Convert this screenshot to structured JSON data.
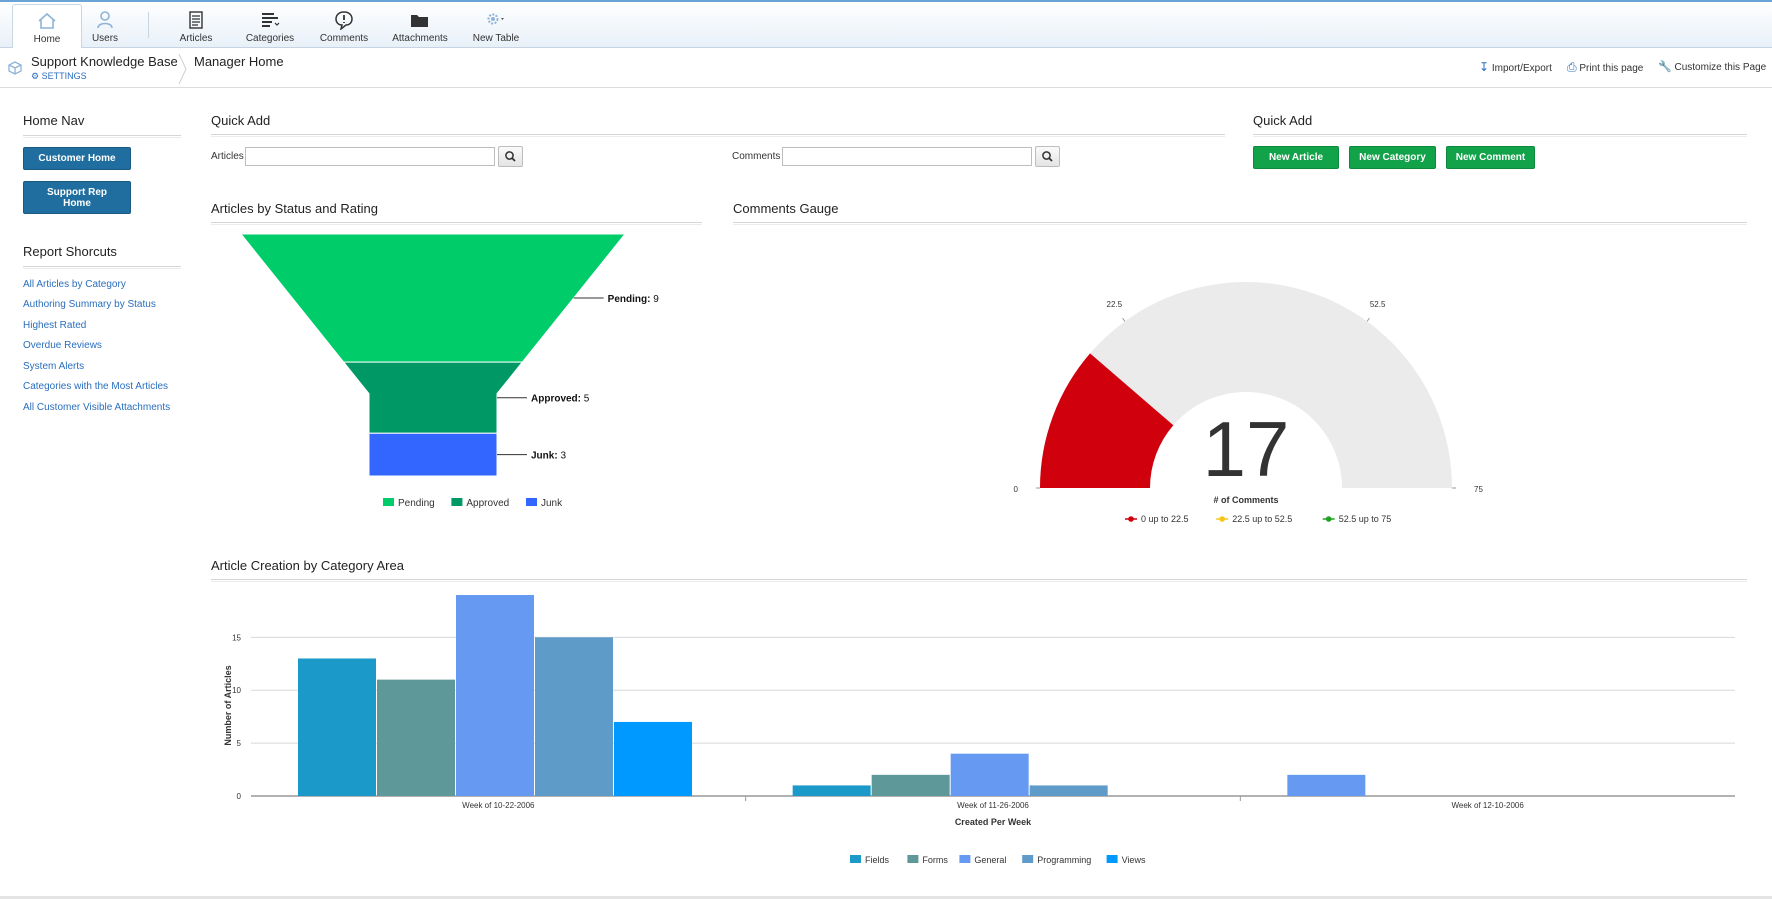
{
  "toolbar": {
    "items": [
      {
        "label": "Home",
        "icon": "home-icon"
      },
      {
        "label": "Users",
        "icon": "user-icon"
      },
      {
        "label": "Articles",
        "icon": "document-icon"
      },
      {
        "label": "Categories",
        "icon": "categories-icon"
      },
      {
        "label": "Comments",
        "icon": "comment-icon"
      },
      {
        "label": "Attachments",
        "icon": "folder-icon"
      },
      {
        "label": "New Table",
        "icon": "gear-icon"
      }
    ]
  },
  "header": {
    "app_title": "Support Knowledge Base",
    "settings_label": "SETTINGS",
    "page_title": "Manager Home",
    "actions": [
      "Import/Export",
      "Print this page",
      "Customize this Page"
    ]
  },
  "home_nav": {
    "title": "Home Nav",
    "buttons": [
      "Customer Home",
      "Support Rep Home"
    ]
  },
  "report_shortcuts": {
    "title": "Report Shorcuts",
    "links": [
      "All Articles by Category",
      "Authoring Summary by Status",
      "Highest Rated",
      "Overdue Reviews",
      "System Alerts",
      "Categories with the Most Articles",
      "All Customer Visible Attachments"
    ]
  },
  "quick_add_left": {
    "title": "Quick Add",
    "articles_label": "Articles",
    "comments_label": "Comments"
  },
  "quick_add_right": {
    "title": "Quick Add",
    "buttons": [
      "New Article",
      "New Category",
      "New Comment"
    ]
  },
  "colors": {
    "accent_blue": "#1f6e9f",
    "green_button": "#12a34a",
    "link": "#2a6ebd"
  },
  "chart_data": [
    {
      "type": "funnel",
      "title": "Articles by Status and Rating",
      "categories": [
        "Pending",
        "Approved",
        "Junk"
      ],
      "values": [
        9,
        5,
        3
      ],
      "colors": [
        "#00cc6a",
        "#009966",
        "#3366ff"
      ],
      "legend": [
        "Pending",
        "Approved",
        "Junk"
      ]
    },
    {
      "type": "gauge",
      "title": "Comments Gauge",
      "value": 17,
      "min": 0,
      "max": 75,
      "axis_label": "# of Comments",
      "ticks": [
        "0",
        "22.5",
        "52.5",
        "75"
      ],
      "bands": [
        {
          "label": "0 up to 22.5",
          "from": 0,
          "to": 22.5,
          "color": "#d0000d"
        },
        {
          "label": "22.5 up to 52.5",
          "from": 22.5,
          "to": 52.5,
          "color": "#f5c518"
        },
        {
          "label": "52.5 up to 75",
          "from": 52.5,
          "to": 75,
          "color": "#22a022"
        }
      ]
    },
    {
      "type": "bar",
      "title": "Article Creation by Category Area",
      "xlabel": "Created Per Week",
      "ylabel": "Number of Articles",
      "ylim": [
        0,
        19
      ],
      "yticks": [
        0,
        5,
        10,
        15
      ],
      "categories": [
        "Week of 10-22-2006",
        "Week of 11-26-2006",
        "Week of 12-10-2006"
      ],
      "series": [
        {
          "name": "Fields",
          "values": [
            13,
            1,
            0
          ],
          "color": "#1b9ac9"
        },
        {
          "name": "Forms",
          "values": [
            11,
            2,
            0
          ],
          "color": "#5f9898"
        },
        {
          "name": "General",
          "values": [
            19,
            4,
            2
          ],
          "color": "#6699f2"
        },
        {
          "name": "Programming",
          "values": [
            15,
            1,
            0
          ],
          "color": "#5f9bc9"
        },
        {
          "name": "Views",
          "values": [
            7,
            0,
            0
          ],
          "color": "#0099ff"
        }
      ],
      "grid": true,
      "legend": "bottom"
    }
  ]
}
